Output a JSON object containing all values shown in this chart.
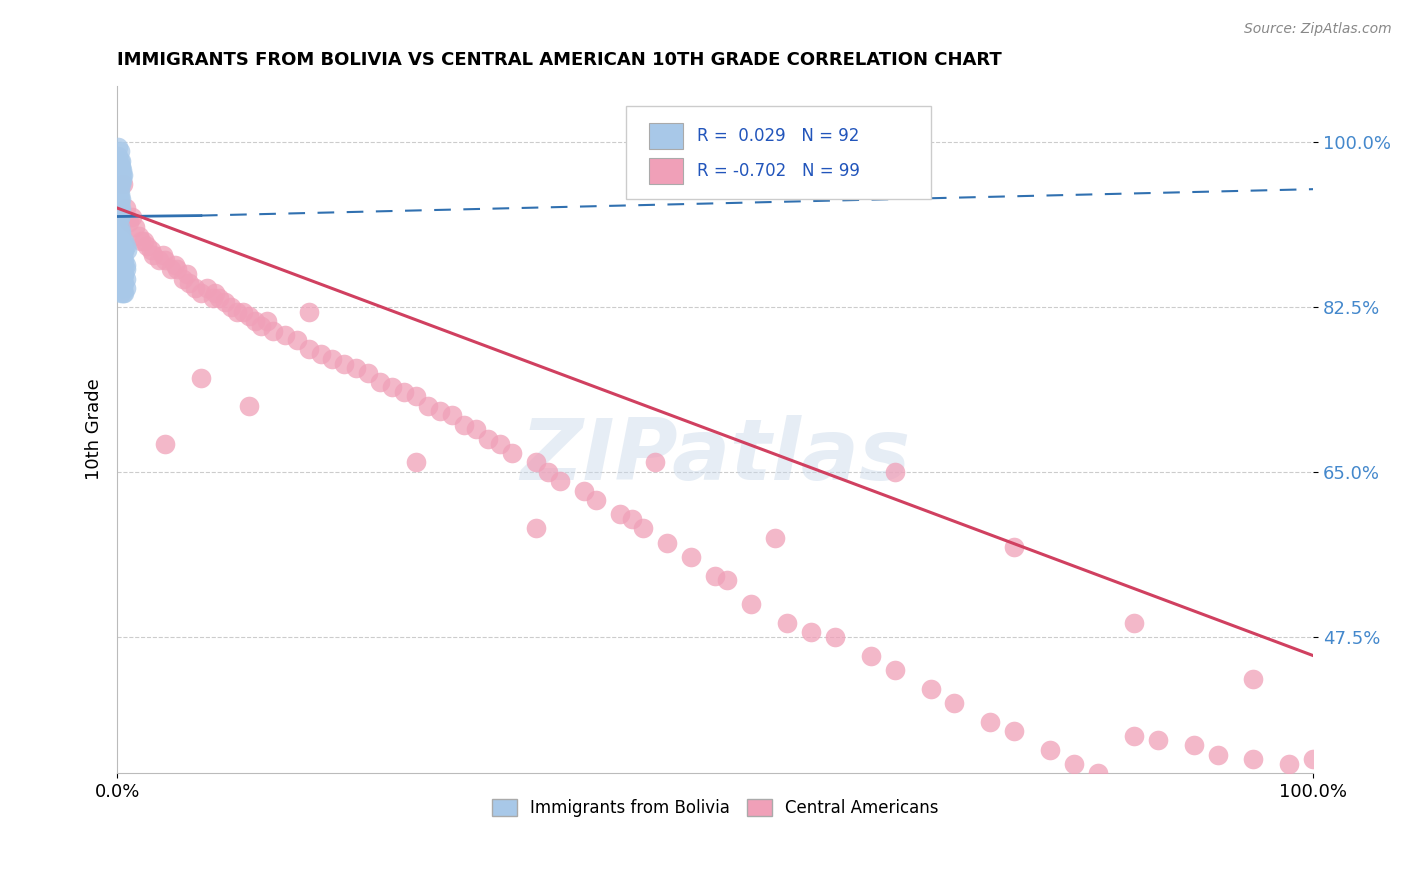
{
  "title": "IMMIGRANTS FROM BOLIVIA VS CENTRAL AMERICAN 10TH GRADE CORRELATION CHART",
  "source": "Source: ZipAtlas.com",
  "ylabel": "10th Grade",
  "legend_label1": "Immigrants from Bolivia",
  "legend_label2": "Central Americans",
  "R_bolivia": 0.029,
  "N_bolivia": 92,
  "R_central": -0.702,
  "N_central": 99,
  "bolivia_color": "#a8c8e8",
  "central_color": "#f0a0b8",
  "bolivia_line_color": "#3070b0",
  "central_line_color": "#d04060",
  "watermark": "ZIPatlas",
  "background_color": "#ffffff",
  "xlim": [
    0.0,
    1.0
  ],
  "ylim": [
    0.33,
    1.06
  ],
  "ytick_labels": [
    "100.0%",
    "82.5%",
    "65.0%",
    "47.5%"
  ],
  "ytick_values": [
    1.0,
    0.825,
    0.65,
    0.475
  ],
  "bolivia_x": [
    0.001,
    0.001,
    0.002,
    0.002,
    0.002,
    0.003,
    0.003,
    0.003,
    0.004,
    0.004,
    0.001,
    0.001,
    0.002,
    0.002,
    0.003,
    0.003,
    0.004,
    0.005,
    0.001,
    0.002,
    0.001,
    0.001,
    0.002,
    0.001,
    0.002,
    0.002,
    0.001,
    0.001,
    0.003,
    0.002,
    0.001,
    0.002,
    0.003,
    0.002,
    0.001,
    0.003,
    0.002,
    0.001,
    0.002,
    0.001,
    0.001,
    0.002,
    0.001,
    0.002,
    0.001,
    0.003,
    0.002,
    0.001,
    0.003,
    0.002,
    0.004,
    0.005,
    0.006,
    0.004,
    0.005,
    0.007,
    0.006,
    0.008,
    0.005,
    0.006,
    0.003,
    0.004,
    0.005,
    0.003,
    0.006,
    0.004,
    0.007,
    0.005,
    0.004,
    0.006,
    0.003,
    0.005,
    0.004,
    0.006,
    0.007,
    0.005,
    0.004,
    0.003,
    0.006,
    0.005,
    0.004,
    0.007,
    0.005,
    0.006,
    0.004,
    0.003,
    0.005,
    0.007,
    0.006,
    0.004,
    0.003,
    0.005
  ],
  "bolivia_y": [
    0.995,
    0.985,
    0.98,
    0.975,
    0.99,
    0.97,
    0.975,
    0.98,
    0.97,
    0.965,
    0.96,
    0.955,
    0.965,
    0.97,
    0.955,
    0.96,
    0.96,
    0.965,
    0.95,
    0.955,
    0.945,
    0.94,
    0.95,
    0.955,
    0.94,
    0.945,
    0.935,
    0.94,
    0.94,
    0.935,
    0.925,
    0.93,
    0.93,
    0.925,
    0.92,
    0.925,
    0.92,
    0.915,
    0.92,
    0.91,
    0.905,
    0.91,
    0.91,
    0.905,
    0.9,
    0.905,
    0.9,
    0.895,
    0.9,
    0.895,
    0.895,
    0.89,
    0.895,
    0.885,
    0.89,
    0.89,
    0.885,
    0.885,
    0.88,
    0.885,
    0.875,
    0.88,
    0.875,
    0.88,
    0.875,
    0.875,
    0.87,
    0.87,
    0.875,
    0.87,
    0.865,
    0.87,
    0.865,
    0.86,
    0.865,
    0.86,
    0.86,
    0.855,
    0.86,
    0.855,
    0.85,
    0.855,
    0.85,
    0.85,
    0.845,
    0.85,
    0.845,
    0.845,
    0.84,
    0.845,
    0.84,
    0.84
  ],
  "central_x": [
    0.005,
    0.007,
    0.01,
    0.012,
    0.015,
    0.018,
    0.02,
    0.022,
    0.025,
    0.028,
    0.03,
    0.035,
    0.038,
    0.04,
    0.045,
    0.048,
    0.05,
    0.055,
    0.058,
    0.06,
    0.065,
    0.07,
    0.075,
    0.08,
    0.082,
    0.085,
    0.09,
    0.095,
    0.1,
    0.105,
    0.11,
    0.115,
    0.12,
    0.125,
    0.13,
    0.14,
    0.15,
    0.16,
    0.17,
    0.18,
    0.19,
    0.2,
    0.21,
    0.22,
    0.23,
    0.24,
    0.25,
    0.26,
    0.27,
    0.28,
    0.29,
    0.3,
    0.31,
    0.32,
    0.33,
    0.35,
    0.36,
    0.37,
    0.39,
    0.4,
    0.42,
    0.43,
    0.44,
    0.46,
    0.48,
    0.5,
    0.51,
    0.53,
    0.56,
    0.58,
    0.6,
    0.63,
    0.65,
    0.68,
    0.7,
    0.73,
    0.75,
    0.78,
    0.8,
    0.82,
    0.85,
    0.87,
    0.9,
    0.92,
    0.95,
    0.98,
    1.0,
    0.04,
    0.07,
    0.11,
    0.16,
    0.25,
    0.35,
    0.45,
    0.55,
    0.65,
    0.75,
    0.85,
    0.95
  ],
  "central_y": [
    0.955,
    0.93,
    0.915,
    0.92,
    0.91,
    0.9,
    0.895,
    0.895,
    0.89,
    0.885,
    0.88,
    0.875,
    0.88,
    0.875,
    0.865,
    0.87,
    0.865,
    0.855,
    0.86,
    0.85,
    0.845,
    0.84,
    0.845,
    0.835,
    0.84,
    0.835,
    0.83,
    0.825,
    0.82,
    0.82,
    0.815,
    0.81,
    0.805,
    0.81,
    0.8,
    0.795,
    0.79,
    0.78,
    0.775,
    0.77,
    0.765,
    0.76,
    0.755,
    0.745,
    0.74,
    0.735,
    0.73,
    0.72,
    0.715,
    0.71,
    0.7,
    0.695,
    0.685,
    0.68,
    0.67,
    0.66,
    0.65,
    0.64,
    0.63,
    0.62,
    0.605,
    0.6,
    0.59,
    0.575,
    0.56,
    0.54,
    0.535,
    0.51,
    0.49,
    0.48,
    0.475,
    0.455,
    0.44,
    0.42,
    0.405,
    0.385,
    0.375,
    0.355,
    0.34,
    0.33,
    0.37,
    0.365,
    0.36,
    0.35,
    0.345,
    0.34,
    0.345,
    0.68,
    0.75,
    0.72,
    0.82,
    0.66,
    0.59,
    0.66,
    0.58,
    0.65,
    0.57,
    0.49,
    0.43
  ],
  "bolivia_line_x": [
    0.0,
    0.4
  ],
  "bolivia_line_y": [
    0.919,
    0.93
  ],
  "central_line_x": [
    0.0,
    1.0
  ],
  "central_line_y": [
    0.93,
    0.455
  ]
}
